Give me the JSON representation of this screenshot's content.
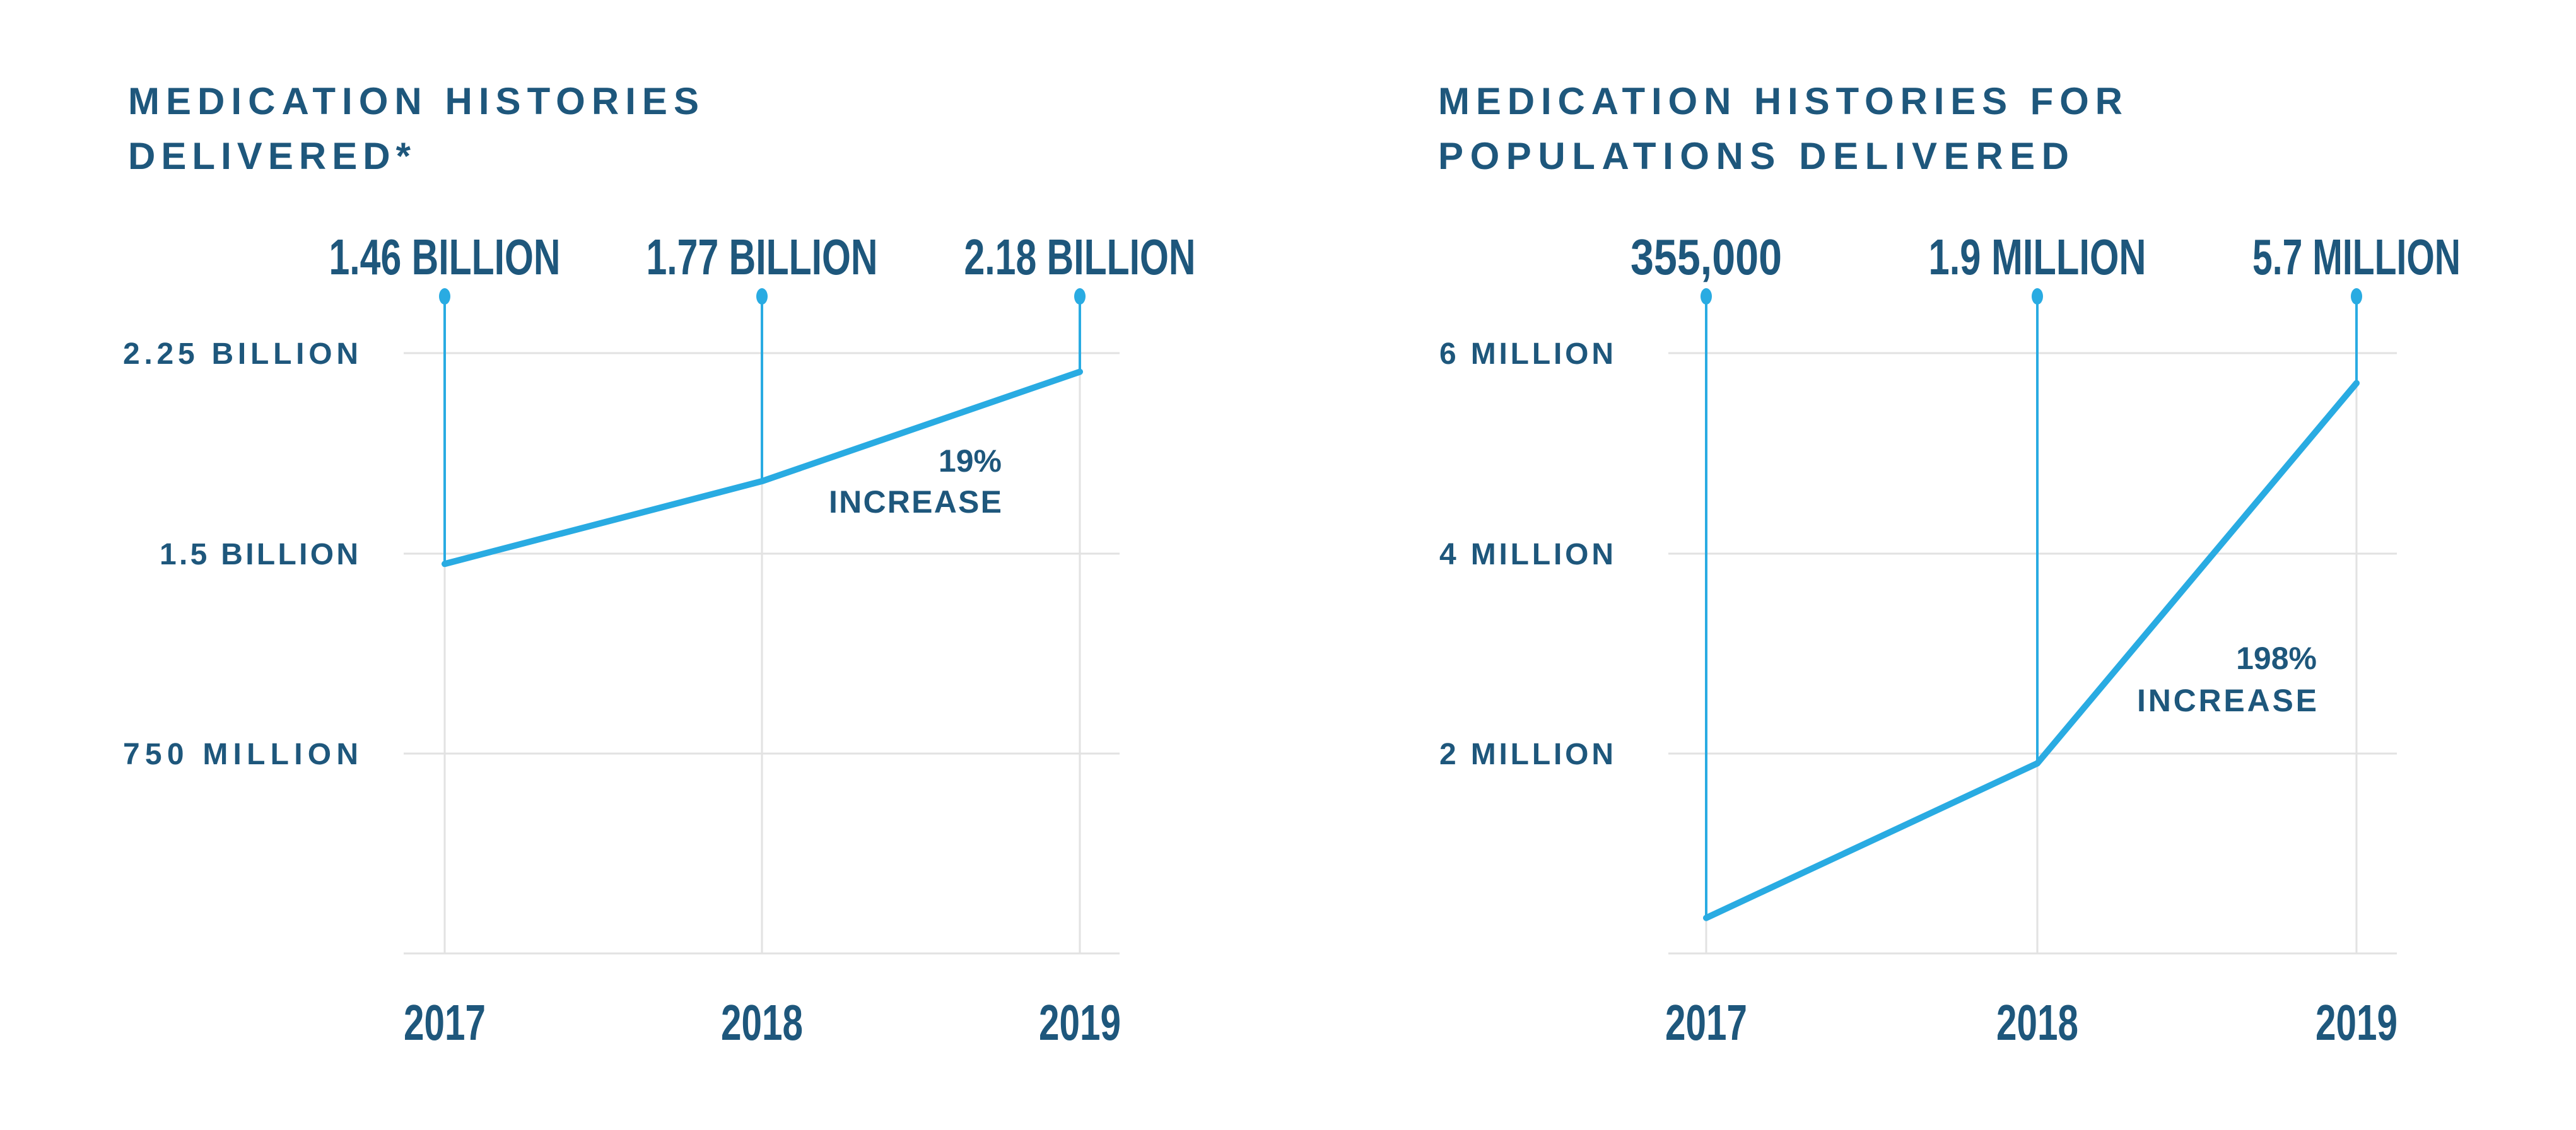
{
  "colors": {
    "navy": "#1E577C",
    "blue": "#29ABE2",
    "gridline": "#E2E2E2",
    "background": "#FFFFFF"
  },
  "left_chart": {
    "title_line1": "MEDICATION HISTORIES",
    "title_line2": "DELIVERED*",
    "value_labels": [
      "1.46 BILLION",
      "1.77 BILLION",
      "2.18 BILLION"
    ],
    "y_tick_labels": [
      "2.25 BILLION",
      "1.5 BILLION",
      "750 MILLION"
    ],
    "x_tick_labels": [
      "2017",
      "2018",
      "2019"
    ],
    "annotation_line1": "19%",
    "annotation_line2": "INCREASE"
  },
  "right_chart": {
    "title_line1": "MEDICATION HISTORIES FOR",
    "title_line2": "POPULATIONS DELIVERED",
    "value_labels": [
      "355,000",
      "1.9 MILLION",
      "5.7 MILLION"
    ],
    "y_tick_labels": [
      "6 MILLION",
      "4 MILLION",
      "2 MILLION"
    ],
    "x_tick_labels": [
      "2017",
      "2018",
      "2019"
    ],
    "annotation_line1": "198%",
    "annotation_line2": "INCREASE"
  },
  "chart_data": [
    {
      "type": "line",
      "title": "MEDICATION HISTORIES DELIVERED*",
      "categories": [
        "2017",
        "2018",
        "2019"
      ],
      "values": [
        1.46,
        1.77,
        2.18
      ],
      "unit": "billion",
      "value_labels": [
        "1.46 BILLION",
        "1.77 BILLION",
        "2.18 BILLION"
      ],
      "y_ticks": [
        {
          "label": "2.25 BILLION",
          "value": 2.25
        },
        {
          "label": "1.5 BILLION",
          "value": 1.5
        },
        {
          "label": "750 MILLION",
          "value": 0.75
        }
      ],
      "ylim": [
        0,
        2.25
      ],
      "grid": true,
      "annotation": "19% INCREASE",
      "line_color": "#29ABE2"
    },
    {
      "type": "line",
      "title": "MEDICATION HISTORIES FOR POPULATIONS DELIVERED",
      "categories": [
        "2017",
        "2018",
        "2019"
      ],
      "values": [
        0.355,
        1.9,
        5.7
      ],
      "unit": "million",
      "value_labels": [
        "355,000",
        "1.9 MILLION",
        "5.7 MILLION"
      ],
      "y_ticks": [
        {
          "label": "6 MILLION",
          "value": 6
        },
        {
          "label": "4 MILLION",
          "value": 4
        },
        {
          "label": "2 MILLION",
          "value": 2
        }
      ],
      "ylim": [
        0,
        6
      ],
      "grid": true,
      "annotation": "198% INCREASE",
      "line_color": "#29ABE2"
    }
  ]
}
